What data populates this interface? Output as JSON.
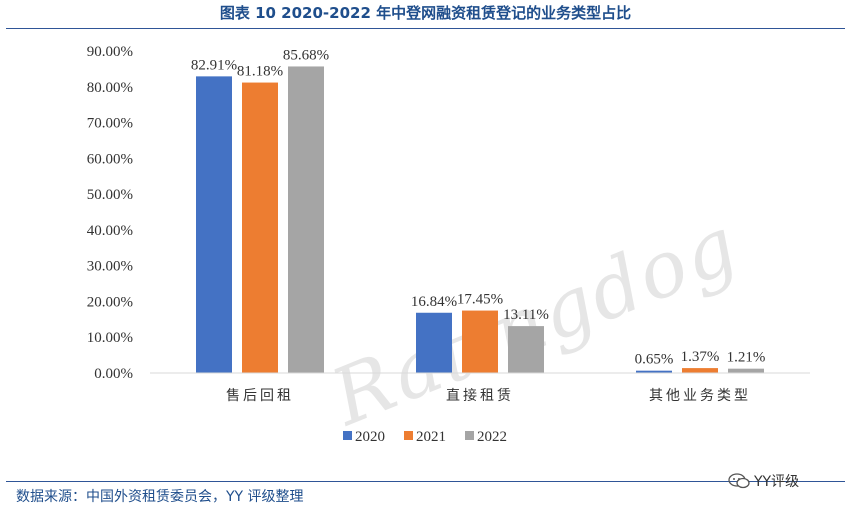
{
  "title": "图表 10 2020-2022 年中登网融资租赁登记的业务类型占比",
  "source": "数据来源：中国外资租赁委员会，YY 评级整理",
  "brand": "YY评级",
  "watermark": "Ratingdog",
  "colors": {
    "2020": "#4472c4",
    "2021": "#ed7d31",
    "2022": "#a5a5a5",
    "rule": "#2f5597",
    "title": "#1f4e8c"
  },
  "chart_data": {
    "type": "bar",
    "title": "图表 10 2020-2022 年中登网融资租赁登记的业务类型占比",
    "categories": [
      "售后回租",
      "直接租赁",
      "其他业务类型"
    ],
    "series": [
      {
        "name": "2020",
        "values": [
          82.91,
          16.84,
          0.65
        ],
        "labels": [
          "82.91%",
          "16.84%",
          "0.65%"
        ]
      },
      {
        "name": "2021",
        "values": [
          81.18,
          17.45,
          1.37
        ],
        "labels": [
          "81.18%",
          "17.45%",
          "1.37%"
        ]
      },
      {
        "name": "2022",
        "values": [
          85.68,
          13.11,
          1.21
        ],
        "labels": [
          "85.68%",
          "13.11%",
          "1.21%"
        ]
      }
    ],
    "ylim": [
      0,
      90
    ],
    "yticks": [
      "0.00%",
      "10.00%",
      "20.00%",
      "30.00%",
      "40.00%",
      "50.00%",
      "60.00%",
      "70.00%",
      "80.00%",
      "90.00%"
    ],
    "legend": "bottom",
    "grid": false
  }
}
